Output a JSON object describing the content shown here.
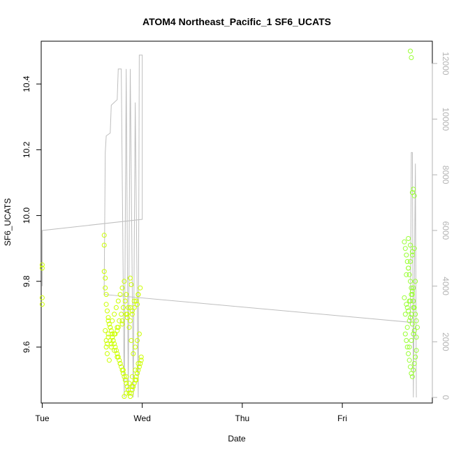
{
  "chart_data": {
    "type": "scatter",
    "title": "ATOM4 Northeast_Pacific_1 SF6_UCATS",
    "xlabel": "Date",
    "ylabel": "SF6_UCATS",
    "y2label": "",
    "x_unit": "days since Tue 00:00",
    "xlim": [
      -0.01,
      3.9
    ],
    "ylim": [
      9.43,
      10.53
    ],
    "y2lim": [
      -200,
      12800
    ],
    "x_ticks": [
      {
        "value": 0,
        "label": "Tue"
      },
      {
        "value": 1,
        "label": "Wed"
      },
      {
        "value": 2,
        "label": "Thu"
      },
      {
        "value": 3,
        "label": "Fri"
      }
    ],
    "y_ticks": [
      {
        "value": 9.6,
        "label": "9.6"
      },
      {
        "value": 9.8,
        "label": "9.8"
      },
      {
        "value": 10.0,
        "label": "10.0"
      },
      {
        "value": 10.2,
        "label": "10.2"
      },
      {
        "value": 10.4,
        "label": "10.4"
      }
    ],
    "y2_ticks": [
      {
        "value": 0,
        "label": "0"
      },
      {
        "value": 2000,
        "label": "2000"
      },
      {
        "value": 4000,
        "label": "4000"
      },
      {
        "value": 6000,
        "label": "6000"
      },
      {
        "value": 8000,
        "label": "8000"
      },
      {
        "value": 10000,
        "label": "10000"
      },
      {
        "value": 12000,
        "label": "12000"
      }
    ],
    "grid": false,
    "series": [
      {
        "name": "SF6_UCATS",
        "kind": "points",
        "marker": "open-circle",
        "color_scale": [
          "#ccff00",
          "#99ff33"
        ],
        "x": [
          0.0,
          0.0,
          0.0,
          0.0,
          0.62,
          0.62,
          0.62,
          0.63,
          0.63,
          0.64,
          0.64,
          0.65,
          0.66,
          0.66,
          0.67,
          0.68,
          0.69,
          0.7,
          0.7,
          0.71,
          0.72,
          0.73,
          0.74,
          0.75,
          0.76,
          0.77,
          0.78,
          0.79,
          0.8,
          0.81,
          0.82,
          0.83,
          0.84,
          0.85,
          0.86,
          0.87,
          0.88,
          0.89,
          0.9,
          0.91,
          0.92,
          0.93,
          0.94,
          0.95,
          0.96,
          0.97,
          0.98,
          0.99,
          0.64,
          0.66,
          0.68,
          0.7,
          0.72,
          0.74,
          0.76,
          0.78,
          0.8,
          0.82,
          0.84,
          0.86,
          0.88,
          0.9,
          0.92,
          0.94,
          0.96,
          0.98,
          0.65,
          0.67,
          0.69,
          0.71,
          0.73,
          0.75,
          0.77,
          0.79,
          0.81,
          0.83,
          0.85,
          0.87,
          0.89,
          0.91,
          0.93,
          0.95,
          0.97,
          0.63,
          0.66,
          0.69,
          0.72,
          0.75,
          0.78,
          0.81,
          0.84,
          0.87,
          0.9,
          0.93,
          0.96,
          0.99,
          0.64,
          0.68,
          0.72,
          0.76,
          0.8,
          0.84,
          0.88,
          0.92,
          0.96,
          0.65,
          0.7,
          0.75,
          0.8,
          0.85,
          0.9,
          0.95,
          0.88,
          0.89,
          0.82,
          0.84,
          0.86,
          0.9,
          0.92,
          0.94,
          3.68,
          3.69,
          3.7,
          3.71,
          3.72,
          3.62,
          3.63,
          3.64,
          3.65,
          3.66,
          3.67,
          3.68,
          3.69,
          3.7,
          3.71,
          3.72,
          3.73,
          3.74,
          3.75,
          3.63,
          3.64,
          3.65,
          3.66,
          3.67,
          3.68,
          3.69,
          3.7,
          3.71,
          3.72,
          3.73,
          3.74,
          3.62,
          3.64,
          3.66,
          3.68,
          3.7,
          3.72,
          3.74,
          3.63,
          3.65,
          3.67,
          3.69,
          3.71,
          3.73,
          3.64,
          3.66,
          3.68,
          3.7,
          3.72,
          3.65,
          3.67,
          3.69,
          3.71,
          3.66,
          3.68,
          3.7,
          3.67,
          3.69,
          3.71,
          3.68,
          3.7
        ],
        "y": [
          9.85,
          9.84,
          9.75,
          9.73,
          9.94,
          9.91,
          9.83,
          9.81,
          9.78,
          9.76,
          9.73,
          9.71,
          9.69,
          9.68,
          9.67,
          9.66,
          9.65,
          9.64,
          9.63,
          9.62,
          9.61,
          9.6,
          9.59,
          9.58,
          9.57,
          9.56,
          9.55,
          9.54,
          9.53,
          9.52,
          9.51,
          9.5,
          9.49,
          9.48,
          9.47,
          9.46,
          9.45,
          9.46,
          9.47,
          9.48,
          9.49,
          9.5,
          9.51,
          9.52,
          9.53,
          9.54,
          9.55,
          9.56,
          9.62,
          9.64,
          9.66,
          9.68,
          9.7,
          9.72,
          9.74,
          9.76,
          9.78,
          9.8,
          9.76,
          9.72,
          9.68,
          9.7,
          9.72,
          9.74,
          9.76,
          9.78,
          9.58,
          9.56,
          9.6,
          9.62,
          9.64,
          9.66,
          9.68,
          9.7,
          9.72,
          9.74,
          9.7,
          9.66,
          9.62,
          9.58,
          9.6,
          9.62,
          9.64,
          9.65,
          9.63,
          9.61,
          9.59,
          9.57,
          9.55,
          9.53,
          9.51,
          9.49,
          9.51,
          9.53,
          9.55,
          9.57,
          9.6,
          9.62,
          9.64,
          9.66,
          9.68,
          9.7,
          9.72,
          9.74,
          9.76,
          9.61,
          9.63,
          9.65,
          9.67,
          9.69,
          9.71,
          9.73,
          9.81,
          9.79,
          9.45,
          9.46,
          9.47,
          9.48,
          9.49,
          9.5,
          10.5,
          10.48,
          10.07,
          10.08,
          10.06,
          9.92,
          9.9,
          9.88,
          9.86,
          9.84,
          9.82,
          9.8,
          9.78,
          9.76,
          9.74,
          9.72,
          9.7,
          9.68,
          9.66,
          9.64,
          9.62,
          9.6,
          9.58,
          9.56,
          9.54,
          9.52,
          9.51,
          9.53,
          9.55,
          9.57,
          9.59,
          9.75,
          9.73,
          9.71,
          9.69,
          9.67,
          9.65,
          9.63,
          9.7,
          9.72,
          9.74,
          9.76,
          9.78,
          9.8,
          9.82,
          9.84,
          9.86,
          9.88,
          9.9,
          9.66,
          9.68,
          9.7,
          9.72,
          9.93,
          9.91,
          9.89,
          9.6,
          9.62,
          9.64,
          9.74,
          9.77
        ]
      },
      {
        "name": "",
        "kind": "line",
        "axis": "y2",
        "color": "#bebebe",
        "points": [
          [
            0.0,
            4000
          ],
          [
            0.0,
            6000
          ],
          [
            1.0,
            6400
          ],
          [
            1.0,
            12300
          ],
          [
            0.97,
            12300
          ],
          [
            0.96,
            0
          ],
          [
            0.93,
            10600
          ],
          [
            0.91,
            0
          ],
          [
            0.88,
            11800
          ],
          [
            0.86,
            0
          ],
          [
            0.84,
            11800
          ],
          [
            0.82,
            0
          ],
          [
            0.79,
            11800
          ],
          [
            0.76,
            11800
          ],
          [
            0.75,
            10700
          ],
          [
            0.69,
            10500
          ],
          [
            0.68,
            9500
          ],
          [
            0.64,
            9400
          ],
          [
            0.63,
            8800
          ],
          [
            0.62,
            4000
          ],
          [
            0.62,
            3700
          ],
          [
            3.68,
            2700
          ],
          [
            3.69,
            8800
          ],
          [
            3.7,
            8800
          ],
          [
            3.71,
            0
          ],
          [
            3.73,
            8400
          ],
          [
            3.74,
            0
          ]
        ]
      }
    ]
  }
}
